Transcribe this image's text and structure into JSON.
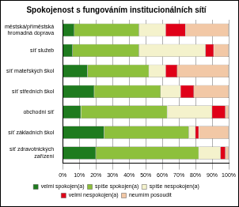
{
  "chart_data": {
    "type": "bar",
    "title": "Spokojenost s fungováním institucionálních sítí",
    "orientation": "horizontal",
    "stacked": true,
    "grid": true,
    "legend": "bottom",
    "categories": [
      "městská/příměstská hromadná doprava",
      "síť služeb",
      "síť mateřských škol",
      "síť středních škol",
      "obchodní síť",
      "síť základních škol",
      "síť zdravotnických zařízení"
    ],
    "series": [
      {
        "name": "velmi spokojen(a)",
        "color": "#1e7b1e",
        "values": [
          7,
          6,
          15,
          19,
          11,
          25,
          20
        ]
      },
      {
        "name": "spíše spokojen(a)",
        "color": "#8dc03c",
        "values": [
          39,
          40,
          37,
          40,
          52,
          51,
          62
        ]
      },
      {
        "name": "spíše nespokojen(a)",
        "color": "#f4f2cc",
        "values": [
          16,
          40,
          10,
          12,
          27,
          4,
          13
        ]
      },
      {
        "name": "velmi nespokojen(a)",
        "color": "#e00018",
        "values": [
          12,
          5,
          7,
          8,
          8,
          2,
          3
        ]
      },
      {
        "name": "neumím posoudit",
        "color": "#f2c8a6",
        "values": [
          26,
          9,
          31,
          21,
          2,
          18,
          2
        ]
      }
    ],
    "xlim": [
      0,
      100
    ],
    "xticks": [
      {
        "value": 0,
        "label": "0%"
      },
      {
        "value": 10,
        "label": "10%"
      },
      {
        "value": 20,
        "label": "20%"
      },
      {
        "value": 30,
        "label": "30%"
      },
      {
        "value": 40,
        "label": "40%"
      },
      {
        "value": 50,
        "label": "50%"
      },
      {
        "value": 60,
        "label": "60%"
      },
      {
        "value": 70,
        "label": "70%"
      },
      {
        "value": 80,
        "label": "80%"
      },
      {
        "value": 90,
        "label": "90%"
      },
      {
        "value": 100,
        "label": "100%"
      }
    ]
  }
}
